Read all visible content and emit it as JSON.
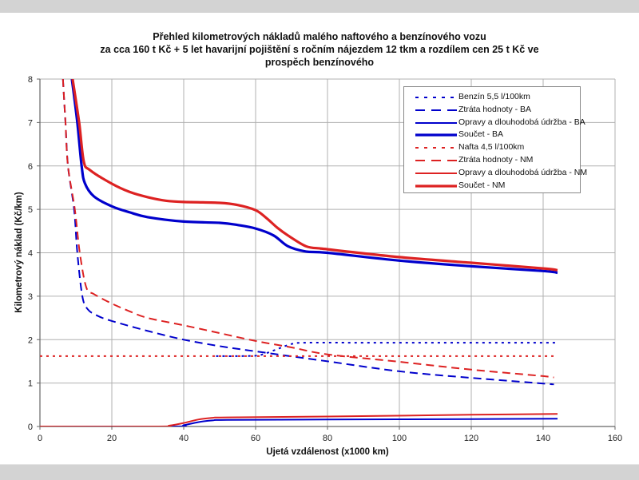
{
  "chart_data": {
    "type": "line",
    "title": "Přehled kilometrových nákladů malého naftového a benzínového vozu",
    "subtitle": "za cca 160 t Kč + 5 let havarijní pojištění s ročním nájezdem 12 tkm a rozdílem cen 25 t Kč ve prospěch benzínového",
    "xlabel": "Ujetá vzdálenost (x1000 km)",
    "ylabel": "Kilometrový náklad (Kč/km)",
    "xlim": [
      0,
      160
    ],
    "ylim": [
      0,
      8
    ],
    "xticks": [
      "0",
      "20",
      "40",
      "60",
      "80",
      "100",
      "120",
      "140",
      "160"
    ],
    "yticks": [
      "0",
      "1",
      "2",
      "3",
      "4",
      "5",
      "6",
      "7",
      "8"
    ],
    "grid": true,
    "legend_position": "top-right",
    "series": [
      {
        "name": "Benzín 5,5 l/100km",
        "color": "#0000cc",
        "style": "dotted",
        "weight": "normal",
        "points": [
          [
            49,
            1.62
          ],
          [
            55,
            1.62
          ],
          [
            60,
            1.63
          ],
          [
            62,
            1.66
          ],
          [
            66,
            1.78
          ],
          [
            70,
            1.9
          ],
          [
            74,
            1.93
          ],
          [
            90,
            1.93
          ],
          [
            120,
            1.93
          ],
          [
            144,
            1.93
          ]
        ]
      },
      {
        "name": "Ztráta hodnoty - BA",
        "color": "#0000cc",
        "style": "dashed",
        "weight": "normal",
        "points": [
          [
            6.4,
            8
          ],
          [
            7.1,
            7
          ],
          [
            7.8,
            6
          ],
          [
            9.5,
            5
          ],
          [
            10.4,
            4
          ],
          [
            11.8,
            3
          ],
          [
            13.3,
            2.7
          ],
          [
            16,
            2.55
          ],
          [
            20,
            2.43
          ],
          [
            30,
            2.2
          ],
          [
            40,
            2.0
          ],
          [
            50,
            1.85
          ],
          [
            60,
            1.73
          ],
          [
            80,
            1.5
          ],
          [
            100,
            1.27
          ],
          [
            120,
            1.12
          ],
          [
            140,
            0.99
          ],
          [
            143,
            0.97
          ]
        ]
      },
      {
        "name": "Opravy a dlouhodobá údržba - BA",
        "color": "#0000cc",
        "style": "solid",
        "weight": "normal",
        "points": [
          [
            0,
            0
          ],
          [
            37,
            0
          ],
          [
            40,
            0.03
          ],
          [
            44,
            0.1
          ],
          [
            48,
            0.14
          ],
          [
            52,
            0.15
          ],
          [
            80,
            0.16
          ],
          [
            120,
            0.17
          ],
          [
            144,
            0.18
          ]
        ]
      },
      {
        "name": "Součet - BA",
        "color": "#0000cc",
        "style": "solid",
        "weight": "bold",
        "points": [
          [
            8.9,
            8
          ],
          [
            10.4,
            7
          ],
          [
            11.6,
            6
          ],
          [
            12.5,
            5.6
          ],
          [
            15,
            5.3
          ],
          [
            20,
            5.07
          ],
          [
            25,
            4.93
          ],
          [
            30,
            4.82
          ],
          [
            40,
            4.72
          ],
          [
            50,
            4.69
          ],
          [
            55,
            4.64
          ],
          [
            60,
            4.56
          ],
          [
            65,
            4.4
          ],
          [
            69,
            4.15
          ],
          [
            74,
            4.03
          ],
          [
            80,
            4.0
          ],
          [
            100,
            3.82
          ],
          [
            120,
            3.69
          ],
          [
            140,
            3.58
          ],
          [
            144,
            3.54
          ]
        ]
      },
      {
        "name": "Nafta 4,5 l/100km",
        "color": "#dd2222",
        "style": "dotted",
        "weight": "normal",
        "points": [
          [
            0,
            1.62
          ],
          [
            144,
            1.62
          ]
        ]
      },
      {
        "name": "Ztráta hodnoty - NM",
        "color": "#dd2222",
        "style": "dashed",
        "weight": "normal",
        "points": [
          [
            6.4,
            8
          ],
          [
            7.1,
            7
          ],
          [
            7.8,
            6
          ],
          [
            9.7,
            5
          ],
          [
            11.1,
            4
          ],
          [
            12.9,
            3.2
          ],
          [
            15,
            3.05
          ],
          [
            20,
            2.83
          ],
          [
            25,
            2.65
          ],
          [
            30,
            2.5
          ],
          [
            40,
            2.33
          ],
          [
            50,
            2.15
          ],
          [
            60,
            1.97
          ],
          [
            70,
            1.82
          ],
          [
            80,
            1.66
          ],
          [
            100,
            1.49
          ],
          [
            120,
            1.31
          ],
          [
            140,
            1.16
          ],
          [
            143,
            1.13
          ]
        ]
      },
      {
        "name": "Opravy a dlouhodobá údržba - NM",
        "color": "#dd2222",
        "style": "solid",
        "weight": "normal",
        "points": [
          [
            0,
            0
          ],
          [
            33,
            0
          ],
          [
            36,
            0.02
          ],
          [
            40,
            0.08
          ],
          [
            44,
            0.16
          ],
          [
            48,
            0.2
          ],
          [
            52,
            0.21
          ],
          [
            80,
            0.23
          ],
          [
            120,
            0.27
          ],
          [
            144,
            0.29
          ]
        ]
      },
      {
        "name": "Součet - NM",
        "color": "#dd2222",
        "style": "solid",
        "weight": "bold",
        "points": [
          [
            9.1,
            8
          ],
          [
            10.9,
            7
          ],
          [
            12.2,
            6.1
          ],
          [
            14,
            5.9
          ],
          [
            20,
            5.59
          ],
          [
            25,
            5.4
          ],
          [
            30,
            5.28
          ],
          [
            35,
            5.2
          ],
          [
            40,
            5.17
          ],
          [
            50,
            5.15
          ],
          [
            55,
            5.1
          ],
          [
            60,
            4.98
          ],
          [
            63,
            4.8
          ],
          [
            66,
            4.58
          ],
          [
            69,
            4.4
          ],
          [
            74,
            4.15
          ],
          [
            78,
            4.1
          ],
          [
            80,
            4.08
          ],
          [
            100,
            3.9
          ],
          [
            120,
            3.77
          ],
          [
            140,
            3.64
          ],
          [
            144,
            3.6
          ]
        ]
      }
    ]
  }
}
